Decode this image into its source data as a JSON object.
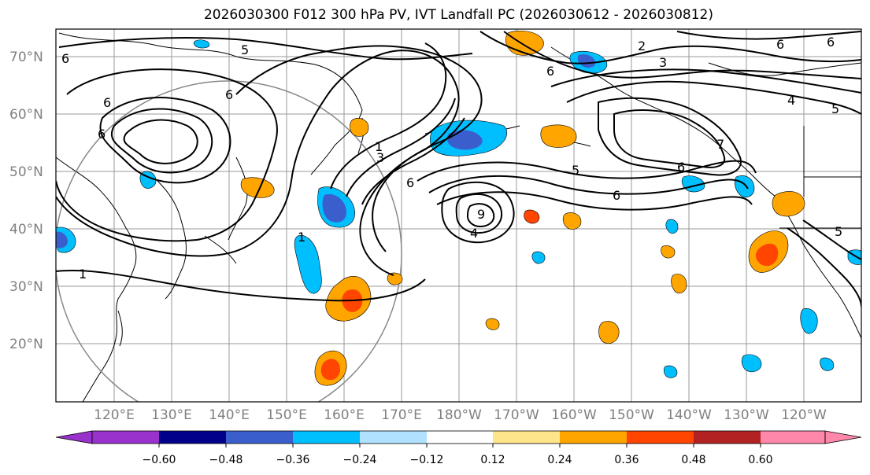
{
  "title": "2026030300 F012 300 hPa PV, IVT Landfall PC (2026030612 - 2026030812)",
  "lat_labels": [
    "70°N",
    "60°N",
    "50°N",
    "40°N",
    "30°N",
    "20°N"
  ],
  "lon_labels": [
    "120°E",
    "130°E",
    "140°E",
    "150°E",
    "160°E",
    "170°E",
    "180°W",
    "170°W",
    "160°W",
    "150°W",
    "140°W",
    "130°W",
    "120°W"
  ],
  "colorbar": {
    "ticks": [
      "−0.60",
      "−0.48",
      "−0.36",
      "−0.24",
      "−0.12",
      "0.12",
      "0.24",
      "0.36",
      "0.48",
      "0.60"
    ],
    "colors": [
      "#9932cc",
      "#00008b",
      "#3a5fcd",
      "#00bfff",
      "#b0e2ff",
      "#ffffff",
      "#ffe58a",
      "#ffa500",
      "#ff4500",
      "#b22222",
      "#ff88aa"
    ]
  },
  "contour_labels": [
    "1",
    "5",
    "6",
    "2",
    "3",
    "6",
    "9",
    "6",
    "5",
    "4",
    "3",
    "1",
    "7",
    "6",
    "6",
    "5",
    "6",
    "1",
    "6",
    "6",
    "6",
    "6",
    "5",
    "4"
  ]
}
